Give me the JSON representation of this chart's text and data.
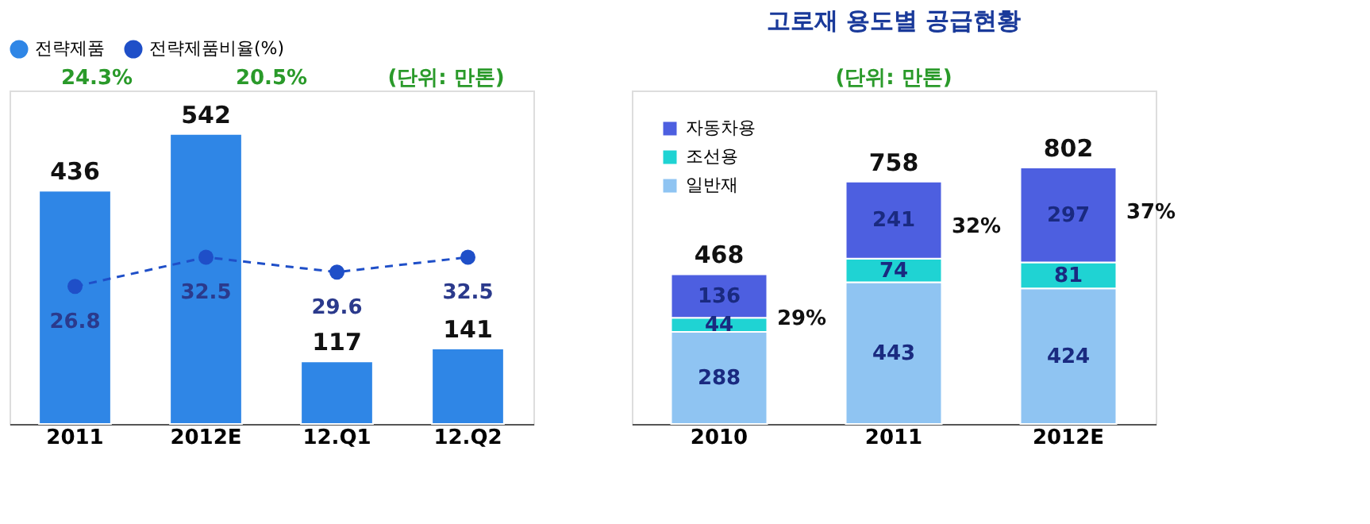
{
  "chart_data": [
    {
      "type": "bar",
      "categories": [
        "2011",
        "2012E",
        "12.Q1",
        "12.Q2"
      ],
      "series": [
        {
          "name": "전략제품",
          "color": "#2f86e6",
          "values": [
            436,
            542,
            117,
            141
          ]
        },
        {
          "name": "전략제품비율(%)",
          "type": "line",
          "axis": "y2",
          "color": "#1f4fc8",
          "values": [
            26.8,
            32.5,
            29.6,
            32.5
          ],
          "line_style": "dashed",
          "marker": "circle"
        }
      ],
      "data_labels": true,
      "tick_labels": "x",
      "grid": false,
      "legend": "top",
      "annotations": [
        "24.3%",
        "20.5%",
        "(단위: 만톤)"
      ]
    },
    {
      "type": "bar",
      "stacked": true,
      "title": "고로재 용도별 공급현황",
      "categories": [
        "2010",
        "2011",
        "2012E"
      ],
      "series": [
        {
          "name": "일반재",
          "color": "#8fc4f2",
          "values": [
            288,
            443,
            424
          ]
        },
        {
          "name": "조선용",
          "color": "#1fd3d3",
          "values": [
            44,
            74,
            81
          ]
        },
        {
          "name": "자동차용",
          "color": "#4d5fe0",
          "values": [
            136,
            241,
            297
          ]
        }
      ],
      "totals": [
        "468",
        "758",
        "802"
      ],
      "data_labels": true,
      "tick_labels": "x",
      "grid": false,
      "legend": "top left",
      "annotations": [
        "29%",
        "32%",
        "37%",
        "(단위: 만톤)"
      ]
    }
  ]
}
